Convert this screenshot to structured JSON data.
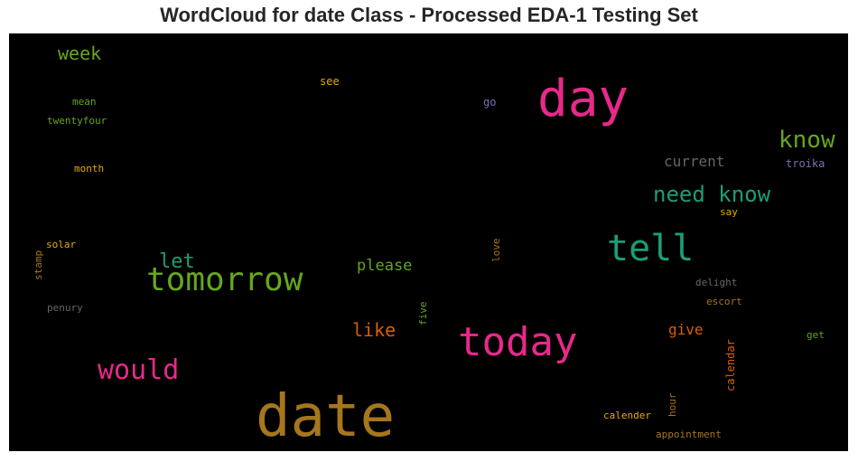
{
  "title": "WordCloud for date Class - Processed EDA-1 Testing Set",
  "colors": {
    "background": "#000000",
    "magenta": "#e7298a",
    "green": "#66a61e",
    "teal": "#1b9e77",
    "gold": "#a6761d",
    "orange": "#d95f02",
    "yellow": "#e6ab02",
    "purple": "#7570b3",
    "gray": "#666666"
  },
  "chart_data": {
    "type": "wordcloud",
    "words": [
      {
        "text": "date",
        "color": "#a6761d"
      },
      {
        "text": "day",
        "color": "#e7298a"
      },
      {
        "text": "today",
        "color": "#e7298a"
      },
      {
        "text": "tell",
        "color": "#1b9e77"
      },
      {
        "text": "tomorrow",
        "color": "#66a61e"
      },
      {
        "text": "would",
        "color": "#e7298a"
      },
      {
        "text": "need know",
        "color": "#1b9e77"
      },
      {
        "text": "know",
        "color": "#66a61e"
      },
      {
        "text": "let",
        "color": "#1b9e77"
      },
      {
        "text": "like",
        "color": "#d95f02"
      },
      {
        "text": "week",
        "color": "#66a61e"
      },
      {
        "text": "please",
        "color": "#66a61e"
      },
      {
        "text": "current",
        "color": "#666666"
      },
      {
        "text": "give",
        "color": "#d95f02"
      },
      {
        "text": "see",
        "color": "#e6ab02"
      },
      {
        "text": "go",
        "color": "#7570b3"
      },
      {
        "text": "troika",
        "color": "#7570b3"
      },
      {
        "text": "mean",
        "color": "#66a61e"
      },
      {
        "text": "twentyfour",
        "color": "#66a61e"
      },
      {
        "text": "month",
        "color": "#e6ab02"
      },
      {
        "text": "say",
        "color": "#e6ab02"
      },
      {
        "text": "solar",
        "color": "#e6ab02"
      },
      {
        "text": "stamp",
        "color": "#a6761d"
      },
      {
        "text": "penury",
        "color": "#666666"
      },
      {
        "text": "love",
        "color": "#a6761d"
      },
      {
        "text": "five",
        "color": "#66a61e"
      },
      {
        "text": "delight",
        "color": "#666666"
      },
      {
        "text": "escort",
        "color": "#a6761d"
      },
      {
        "text": "get",
        "color": "#66a61e"
      },
      {
        "text": "calendar",
        "color": "#d95f02"
      },
      {
        "text": "hour",
        "color": "#a6761d"
      },
      {
        "text": "calender",
        "color": "#e6ab02"
      },
      {
        "text": "appointment",
        "color": "#a6761d"
      }
    ]
  }
}
